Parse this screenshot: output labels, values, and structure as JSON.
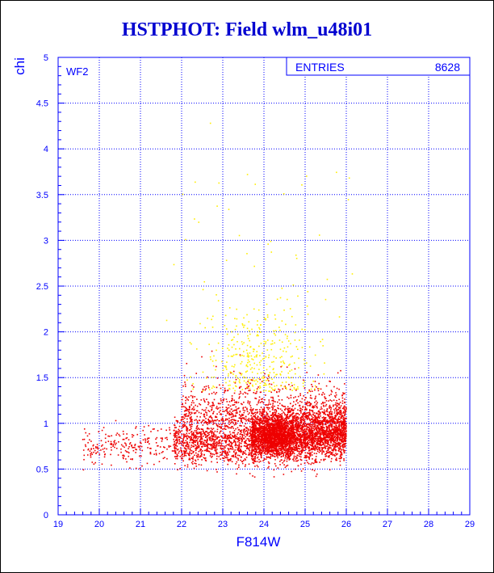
{
  "colors": {
    "axis": "#0000ff",
    "title": "#0000d0",
    "frame": "#000000",
    "background": "#ffffff",
    "series_red": "#ee0000",
    "series_yellow": "#ffee00"
  },
  "chart_data": {
    "type": "scatter",
    "title": "HSTPHOT: Field wlm_u48i01",
    "xlabel": "F814W",
    "ylabel": "chi",
    "xlim": [
      19,
      29
    ],
    "ylim": [
      0,
      5
    ],
    "xticks": [
      "19",
      "20",
      "21",
      "22",
      "23",
      "24",
      "25",
      "26",
      "27",
      "28",
      "29"
    ],
    "yticks": [
      "0",
      "0.5",
      "1",
      "1.5",
      "2",
      "2.5",
      "3",
      "3.5",
      "4",
      "4.5",
      "5"
    ],
    "grid": true,
    "panel_label": "WF2",
    "stats_box": {
      "label": "ENTRIES",
      "value": "8628"
    },
    "series": [
      {
        "color": "red",
        "description_counts": "dense clump centered near F814W 24.4, chi 0.85; extends from F814W ~19.5 to 26, chi 0.35 to 1.6",
        "values_summary": {
          "x_range": [
            19.5,
            26.0
          ],
          "y_range": [
            0.35,
            1.6
          ],
          "core_center": [
            24.4,
            0.85
          ]
        }
      },
      {
        "color": "yellow",
        "values_summary": {
          "x_range": [
            21.5,
            26.2
          ],
          "y_range": [
            1.2,
            4.3
          ],
          "core_center": [
            23.8,
            1.7
          ]
        }
      }
    ]
  }
}
